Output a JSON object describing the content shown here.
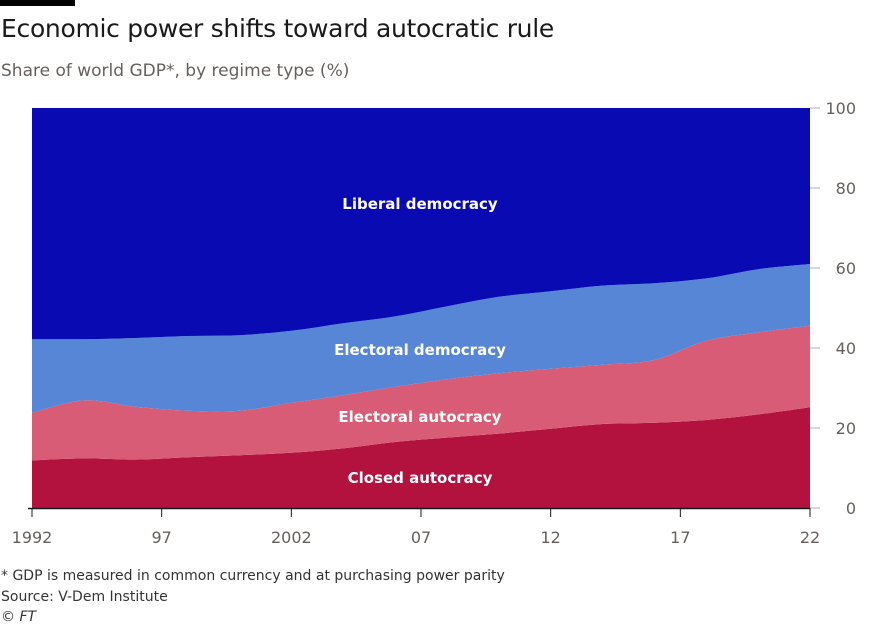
{
  "header": {
    "title": "Economic power shifts toward autocratic rule",
    "subtitle": "Share of world GDP*, by regime type (%)"
  },
  "footer": {
    "note": "* GDP is measured in common currency and at purchasing power parity",
    "source": "Source: V-Dem Institute",
    "copyright": "© FT"
  },
  "colors": {
    "closed_autocracy": "#b3123f",
    "electoral_autocracy": "#d95c77",
    "electoral_democracy": "#5686d5",
    "liberal_democracy": "#0a0ab2"
  },
  "chart_data": {
    "type": "area",
    "stacked": true,
    "title": "Economic power shifts toward autocratic rule",
    "subtitle": "Share of world GDP*, by regime type (%)",
    "x": [
      1992,
      1994,
      1996,
      1998,
      2000,
      2002,
      2004,
      2006,
      2008,
      2010,
      2012,
      2014,
      2016,
      2018,
      2020,
      2022
    ],
    "xticks": [
      1992,
      1997,
      2002,
      2007,
      2012,
      2017,
      2022
    ],
    "xtick_labels": [
      "1992",
      "97",
      "2002",
      "07",
      "12",
      "17",
      "22"
    ],
    "yticks": [
      0,
      20,
      40,
      60,
      80,
      100
    ],
    "ytick_labels": [
      "0",
      "20",
      "40",
      "60",
      "80",
      "100"
    ],
    "ylim": [
      0,
      100
    ],
    "y_axis_side": "right",
    "grid": false,
    "series": [
      {
        "name": "Closed autocracy",
        "color_key": "closed_autocracy",
        "values": [
          11.9,
          12.4,
          12.1,
          12.7,
          13.2,
          13.8,
          14.9,
          16.5,
          17.6,
          18.6,
          19.8,
          21.0,
          21.3,
          22.0,
          23.4,
          25.2
        ]
      },
      {
        "name": "Electoral autocracy",
        "color_key": "electoral_autocracy",
        "values": [
          11.9,
          14.5,
          13.2,
          11.6,
          11.1,
          12.5,
          13.3,
          13.8,
          14.6,
          15.1,
          15.0,
          14.8,
          15.7,
          19.8,
          20.5,
          20.4
        ]
      },
      {
        "name": "Electoral democracy",
        "color_key": "electoral_democracy",
        "values": [
          18.4,
          15.3,
          17.2,
          18.7,
          18.9,
          18.0,
          18.0,
          17.6,
          18.2,
          19.1,
          19.4,
          19.8,
          19.2,
          15.6,
          15.8,
          15.4
        ]
      },
      {
        "name": "Liberal democracy",
        "color_key": "liberal_democracy",
        "values": [
          57.8,
          57.8,
          57.5,
          57.0,
          56.8,
          55.7,
          53.8,
          52.1,
          49.6,
          47.2,
          45.8,
          44.4,
          43.8,
          42.6,
          40.3,
          39.0
        ]
      }
    ]
  }
}
